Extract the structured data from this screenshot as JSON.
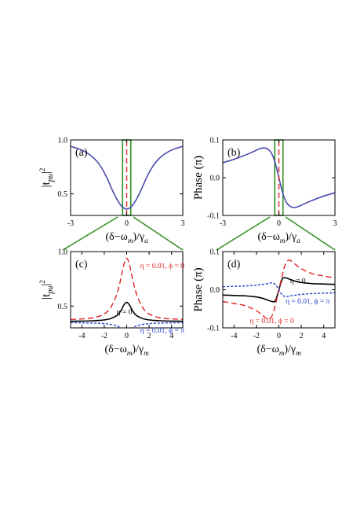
{
  "chart_data": [
    {
      "id": "a",
      "type": "line",
      "panel_label": "(a)",
      "ylabel_main": "|t",
      "ylabel_sub": "pu",
      "ylabel_end": "|",
      "ylabel_sup": "2",
      "xlabel_main": "(δ−ω",
      "xlabel_sub1": "m",
      "xlabel_mid": ")/γ",
      "xlabel_sub2": "a",
      "xlim": [
        -3,
        3
      ],
      "ylim": [
        0.3,
        1.0
      ],
      "xticks": [
        -3,
        0,
        3
      ],
      "xtick_labels": [
        "-3",
        "0",
        "3"
      ],
      "yticks": [
        0.5,
        1.0
      ],
      "ytick_labels": [
        "0.5",
        "1.0"
      ],
      "highlight_box": {
        "x": [
          -0.22,
          0.22
        ],
        "y": [
          0.3,
          1.0
        ],
        "color": "#2f8f1f"
      },
      "series": [
        {
          "color": "#4b4bb0",
          "style": "solid",
          "x": [
            -3,
            -2.75,
            -2.5,
            -2.25,
            -2,
            -1.75,
            -1.5,
            -1.25,
            -1,
            -0.75,
            -0.5,
            -0.25,
            0,
            0.25,
            0.5,
            0.75,
            1,
            1.25,
            1.5,
            1.75,
            2,
            2.25,
            2.5,
            2.75,
            3
          ],
          "y": [
            0.94,
            0.928,
            0.913,
            0.893,
            0.866,
            0.83,
            0.781,
            0.714,
            0.627,
            0.528,
            0.443,
            0.382,
            0.36,
            0.382,
            0.443,
            0.528,
            0.627,
            0.714,
            0.781,
            0.83,
            0.866,
            0.893,
            0.913,
            0.928,
            0.94
          ]
        },
        {
          "color": "#e02020",
          "style": "dashed",
          "x": [
            0,
            0
          ],
          "y": [
            0.3,
            1.0
          ]
        }
      ]
    },
    {
      "id": "b",
      "type": "line",
      "panel_label": "(b)",
      "ylabel_main": "Phase (π)",
      "xlabel_main": "(δ−ω",
      "xlabel_sub1": "m",
      "xlabel_mid": ")/γ",
      "xlabel_sub2": "a",
      "xlim": [
        -3,
        3
      ],
      "ylim": [
        -0.1,
        0.1
      ],
      "xticks": [
        -3,
        0,
        3
      ],
      "xtick_labels": [
        "-3",
        "0",
        "3"
      ],
      "yticks": [
        -0.1,
        0.0,
        0.1
      ],
      "ytick_labels": [
        "-0.1",
        "0.0",
        "0.1"
      ],
      "highlight_box": {
        "x": [
          -0.22,
          0.22
        ],
        "y": [
          -0.1,
          0.1
        ],
        "color": "#2f8f1f"
      },
      "series": [
        {
          "color": "#4b4bb0",
          "style": "solid",
          "x": [
            -3,
            -2.5,
            -2,
            -1.5,
            -1.2,
            -1,
            -0.8,
            -0.6,
            -0.4,
            -0.2,
            0,
            0.2,
            0.4,
            0.6,
            0.8,
            1,
            1.2,
            1.5,
            2,
            2.5,
            3
          ],
          "y": [
            0.04,
            0.047,
            0.056,
            0.066,
            0.073,
            0.077,
            0.079,
            0.076,
            0.065,
            0.04,
            0,
            -0.04,
            -0.065,
            -0.076,
            -0.079,
            -0.077,
            -0.073,
            -0.066,
            -0.056,
            -0.047,
            -0.04
          ]
        },
        {
          "color": "#e02020",
          "style": "dashed",
          "x": [
            0,
            0
          ],
          "y": [
            -0.1,
            0.1
          ]
        }
      ]
    },
    {
      "id": "c",
      "type": "line",
      "panel_label": "(c)",
      "ylabel_main": "|t",
      "ylabel_sub": "pu",
      "ylabel_end": "|",
      "ylabel_sup": "2",
      "xlabel_main": "(δ−ω",
      "xlabel_sub1": "m",
      "xlabel_mid": ")/γ",
      "xlabel_sub2": "m",
      "xlim": [
        -5,
        5
      ],
      "ylim": [
        0.3,
        1.0
      ],
      "xticks": [
        -4,
        -2,
        0,
        2,
        4
      ],
      "xtick_labels": [
        "-4",
        "-2",
        "0",
        "2",
        "4"
      ],
      "yticks": [
        0.5,
        1.0
      ],
      "ytick_labels": [
        "0.5",
        "1.0"
      ],
      "annotations": [
        {
          "text": "η = 0.01, ϕ = 0",
          "x": 1.2,
          "y": 0.85,
          "color": "#e02020"
        },
        {
          "text": "η = 0",
          "x": -0.9,
          "y": 0.425,
          "color": "#000000"
        },
        {
          "text": "η = 0.01, ϕ = π",
          "x": 1.2,
          "y": 0.255,
          "color": "#2040d0"
        }
      ],
      "series": [
        {
          "name": "η = 0.01, ϕ = 0",
          "color": "#e02020",
          "style": "dashed",
          "x": [
            -5,
            -4,
            -3,
            -2.5,
            -2,
            -1.5,
            -1,
            -0.75,
            -0.5,
            -0.25,
            0,
            0.25,
            0.5,
            0.75,
            1,
            1.5,
            2,
            2.5,
            3,
            4,
            5
          ],
          "y": [
            0.377,
            0.382,
            0.392,
            0.405,
            0.428,
            0.475,
            0.575,
            0.655,
            0.76,
            0.88,
            0.94,
            0.88,
            0.76,
            0.655,
            0.575,
            0.475,
            0.428,
            0.405,
            0.392,
            0.382,
            0.377
          ]
        },
        {
          "name": "η = 0",
          "color": "#000000",
          "style": "solid",
          "x": [
            -5,
            -4,
            -3,
            -2.5,
            -2,
            -1.5,
            -1,
            -0.75,
            -0.5,
            -0.25,
            0,
            0.25,
            0.5,
            0.75,
            1,
            1.5,
            2,
            2.5,
            3,
            4,
            5
          ],
          "y": [
            0.361,
            0.362,
            0.365,
            0.368,
            0.373,
            0.383,
            0.405,
            0.425,
            0.46,
            0.51,
            0.535,
            0.51,
            0.46,
            0.425,
            0.405,
            0.383,
            0.373,
            0.368,
            0.365,
            0.362,
            0.361
          ]
        },
        {
          "name": "η = 0.01, ϕ = π",
          "color": "#2040d0",
          "style": "dotted",
          "x": [
            -5,
            -4,
            -3,
            -2.5,
            -2,
            -1.5,
            -1,
            -0.75,
            -0.5,
            -0.25,
            0,
            0.25,
            0.5,
            0.75,
            1,
            1.5,
            2,
            2.5,
            3,
            4,
            5
          ],
          "y": [
            0.348,
            0.346,
            0.344,
            0.342,
            0.339,
            0.333,
            0.322,
            0.313,
            0.298,
            0.28,
            0.27,
            0.28,
            0.298,
            0.313,
            0.322,
            0.333,
            0.339,
            0.342,
            0.344,
            0.346,
            0.348
          ]
        }
      ]
    },
    {
      "id": "d",
      "type": "line",
      "panel_label": "(d)",
      "ylabel_main": "Phase (π)",
      "xlabel_main": "(δ−ω",
      "xlabel_sub1": "m",
      "xlabel_mid": ")/γ",
      "xlabel_sub2": "m",
      "xlim": [
        -5,
        5
      ],
      "ylim": [
        -0.1,
        0.1
      ],
      "xticks": [
        -4,
        -2,
        0,
        2,
        4
      ],
      "xtick_labels": [
        "-4",
        "-2",
        "0",
        "2",
        "4"
      ],
      "yticks": [
        -0.1,
        0.0,
        0.1
      ],
      "ytick_labels": [
        "-0.1",
        "0.0",
        "0.1"
      ],
      "annotations": [
        {
          "text": "η = 0",
          "x": 1.0,
          "y": 0.018,
          "color": "#000000"
        },
        {
          "text": "η = 0.01, ϕ = π",
          "x": 0.6,
          "y": -0.036,
          "color": "#2040d0"
        },
        {
          "text": "η = 0.01, ϕ = 0",
          "x": -2.6,
          "y": -0.088,
          "color": "#e02020"
        }
      ],
      "series": [
        {
          "name": "η = 0",
          "color": "#000000",
          "style": "solid",
          "x": [
            -5,
            -4,
            -3,
            -2,
            -1.5,
            -1,
            -0.6,
            -0.3,
            0,
            0.3,
            0.6,
            1,
            1.5,
            2,
            3,
            4,
            5
          ],
          "y": [
            -0.014,
            -0.015,
            -0.016,
            -0.019,
            -0.022,
            -0.027,
            -0.031,
            -0.028,
            0,
            0.028,
            0.031,
            0.027,
            0.022,
            0.019,
            0.016,
            0.015,
            0.014
          ]
        },
        {
          "name": "η = 0.01, ϕ = 0",
          "color": "#e02020",
          "style": "dashed",
          "x": [
            -5,
            -4,
            -3,
            -2,
            -1.5,
            -1,
            -0.75,
            -0.5,
            -0.25,
            0,
            0.25,
            0.5,
            0.75,
            1,
            1.5,
            2,
            3,
            4,
            5
          ],
          "y": [
            -0.031,
            -0.036,
            -0.042,
            -0.055,
            -0.066,
            -0.077,
            -0.075,
            -0.06,
            -0.032,
            0,
            0.032,
            0.06,
            0.075,
            0.077,
            0.066,
            0.055,
            0.042,
            0.036,
            0.031
          ]
        },
        {
          "name": "η = 0.01, ϕ = π",
          "color": "#2040d0",
          "style": "dotted",
          "x": [
            -5,
            -4,
            -3,
            -2,
            -1.5,
            -1,
            -0.7,
            -0.4,
            -0.2,
            0,
            0.2,
            0.4,
            0.7,
            1,
            1.5,
            2,
            3,
            4,
            5
          ],
          "y": [
            0.008,
            0.009,
            0.01,
            0.012,
            0.014,
            0.016,
            0.018,
            0.016,
            0.01,
            0,
            -0.01,
            -0.016,
            -0.018,
            -0.016,
            -0.014,
            -0.012,
            -0.01,
            -0.009,
            -0.008
          ]
        }
      ]
    }
  ]
}
